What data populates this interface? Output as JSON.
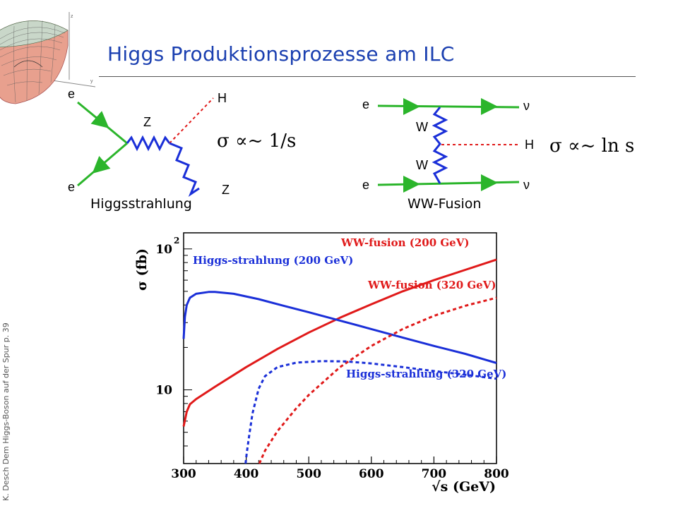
{
  "slide": {
    "title": "Higgs Produktionsprozesse am ILC",
    "side_label": "K. Desch Dem Higgs-Boson auf der Spur p. 39"
  },
  "diagram_left": {
    "caption": "Higgsstrahlung",
    "formula": "σ ∝~ 1/s",
    "particles": {
      "e_top": "e",
      "e_bottom": "e",
      "boson": "Z",
      "higgs": "H",
      "z_out": "Z"
    }
  },
  "diagram_right": {
    "caption": "WW-Fusion",
    "formula": "σ ∝~ ln s",
    "particles": {
      "e_top": "e",
      "e_bottom": "e",
      "w_top": "W",
      "w_bottom": "W",
      "higgs": "H",
      "nu_top": "ν",
      "nu_bottom": "ν"
    }
  },
  "colors": {
    "title": "#1a3fb0",
    "ww": "#e01a1a",
    "hs": "#1a2fd8",
    "fermion": "#2bb52b"
  },
  "chart_data": {
    "type": "line",
    "xlabel": "√s (GeV)",
    "ylabel": "σ (fb)",
    "xlim": [
      300,
      800
    ],
    "ylim_log": [
      3.0,
      13.0
    ],
    "x_ticks": [
      "300",
      "400",
      "500",
      "600",
      "700",
      "800"
    ],
    "y_ticks": [
      {
        "label": "10",
        "sup": "2",
        "value": 100
      },
      {
        "label": "10",
        "sup": "",
        "value": 10
      }
    ],
    "series": [
      {
        "name": "WW-fusion (200 GeV)",
        "color": "#e01a1a",
        "dashed": false,
        "x": [
          300,
          305,
          310,
          320,
          350,
          400,
          450,
          500,
          550,
          600,
          650,
          700,
          750,
          800
        ],
        "y": [
          5.5,
          7.0,
          7.9,
          8.6,
          10.5,
          14.5,
          19.5,
          25.5,
          32.5,
          40.5,
          50,
          60,
          71,
          84
        ]
      },
      {
        "name": "Higgs-strahlung (200 GeV)",
        "color": "#1a2fd8",
        "dashed": false,
        "x": [
          300,
          302,
          305,
          310,
          320,
          340,
          350,
          380,
          420,
          460,
          500,
          550,
          600,
          650,
          700,
          750,
          800
        ],
        "y": [
          23,
          33,
          40,
          45,
          48,
          49.5,
          49.5,
          48,
          44,
          39.5,
          35.5,
          31,
          27,
          23.5,
          20.5,
          18,
          15.5
        ]
      },
      {
        "name": "WW-fusion (320 GeV)",
        "color": "#e01a1a",
        "dashed": true,
        "x": [
          421,
          430,
          450,
          480,
          500,
          550,
          600,
          650,
          700,
          750,
          800
        ],
        "y": [
          3.0,
          3.7,
          5.1,
          7.4,
          9.2,
          14.5,
          20.5,
          27,
          33.5,
          39.5,
          45
        ]
      },
      {
        "name": "Higgs-strahlung (320 GeV)",
        "color": "#1a2fd8",
        "dashed": true,
        "x": [
          399,
          401,
          405,
          410,
          420,
          430,
          450,
          480,
          520,
          560,
          600,
          650,
          700,
          750,
          800
        ],
        "y": [
          3.0,
          3.6,
          4.8,
          6.8,
          10.2,
          12.5,
          14.5,
          15.6,
          16.0,
          15.9,
          15.4,
          14.5,
          13.6,
          12.8,
          12.0
        ]
      }
    ],
    "labels": [
      {
        "text": "WW-fusion (200 GeV)",
        "color": "#e01a1a"
      },
      {
        "text": "Higgs-strahlung (200 GeV)",
        "color": "#1a2fd8"
      },
      {
        "text": "WW-fusion (320 GeV)",
        "color": "#e01a1a"
      },
      {
        "text": "Higgs-strahlung (320 GeV)",
        "color": "#1a2fd8"
      }
    ]
  }
}
